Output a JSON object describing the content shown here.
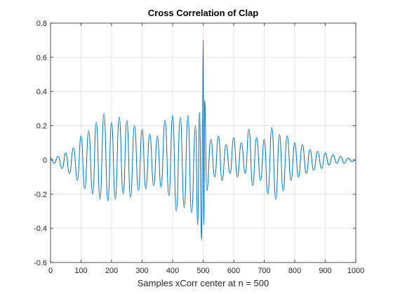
{
  "chart_data": {
    "type": "line",
    "title": "Cross Correlation of Clap",
    "xlabel": "Samples xCorr center at n = 500",
    "ylabel": "",
    "xlim": [
      0,
      1000
    ],
    "ylim": [
      -0.6,
      0.8
    ],
    "xticks": [
      0,
      100,
      200,
      300,
      400,
      500,
      600,
      700,
      800,
      900,
      1000
    ],
    "yticks": [
      -0.6,
      -0.4,
      -0.2,
      0,
      0.2,
      0.4,
      0.6,
      0.8
    ],
    "xtick_labels": [
      "0",
      "100",
      "200",
      "300",
      "400",
      "500",
      "600",
      "700",
      "800",
      "900",
      "1000"
    ],
    "ytick_labels": [
      "-0.6",
      "-0.4",
      "-0.2",
      "0",
      "0.2",
      "0.4",
      "0.6",
      "0.8"
    ],
    "grid": true,
    "legend": "none",
    "colors": {
      "line": "#0072bd",
      "grid": "#dfdfdf",
      "axis": "#262626"
    },
    "series": [
      {
        "x": [
          0,
          12,
          25,
          38,
          50,
          62,
          75,
          88,
          100,
          112,
          125,
          138,
          150,
          162,
          175,
          188,
          200,
          212,
          225,
          238,
          250,
          262,
          275,
          288,
          300,
          312,
          325,
          338,
          350,
          362,
          375,
          388,
          400,
          412,
          425,
          438,
          450,
          462,
          475,
          482,
          488,
          495,
          498,
          500,
          502,
          505,
          512,
          525,
          538,
          550,
          562,
          575,
          588,
          600,
          612,
          625,
          638,
          650,
          662,
          675,
          688,
          700,
          712,
          725,
          738,
          750,
          762,
          775,
          788,
          800,
          812,
          825,
          838,
          850,
          862,
          875,
          888,
          900,
          912,
          925,
          938,
          950,
          962,
          975,
          988,
          1000
        ],
        "y": [
          0.01,
          -0.02,
          0.02,
          -0.05,
          0.04,
          -0.08,
          0.07,
          -0.12,
          0.14,
          -0.17,
          0.17,
          -0.2,
          0.22,
          -0.23,
          0.27,
          -0.24,
          0.22,
          -0.23,
          0.25,
          -0.2,
          0.23,
          -0.22,
          0.2,
          -0.18,
          0.18,
          -0.17,
          0.15,
          -0.15,
          0.14,
          -0.16,
          0.23,
          -0.21,
          0.26,
          -0.3,
          0.25,
          -0.28,
          0.26,
          -0.31,
          0.2,
          -0.38,
          0.28,
          -0.47,
          0.25,
          0.7,
          -0.38,
          0.35,
          -0.18,
          0.12,
          -0.1,
          0.14,
          -0.12,
          0.09,
          -0.08,
          0.13,
          -0.1,
          0.1,
          -0.08,
          0.18,
          -0.15,
          0.13,
          -0.12,
          0.12,
          -0.2,
          0.19,
          -0.23,
          0.15,
          -0.18,
          0.14,
          -0.12,
          0.1,
          -0.1,
          0.09,
          -0.08,
          0.06,
          -0.06,
          0.05,
          -0.05,
          0.04,
          -0.03,
          0.03,
          -0.02,
          0.02,
          -0.02,
          0.01,
          -0.01,
          0.0
        ]
      }
    ]
  }
}
